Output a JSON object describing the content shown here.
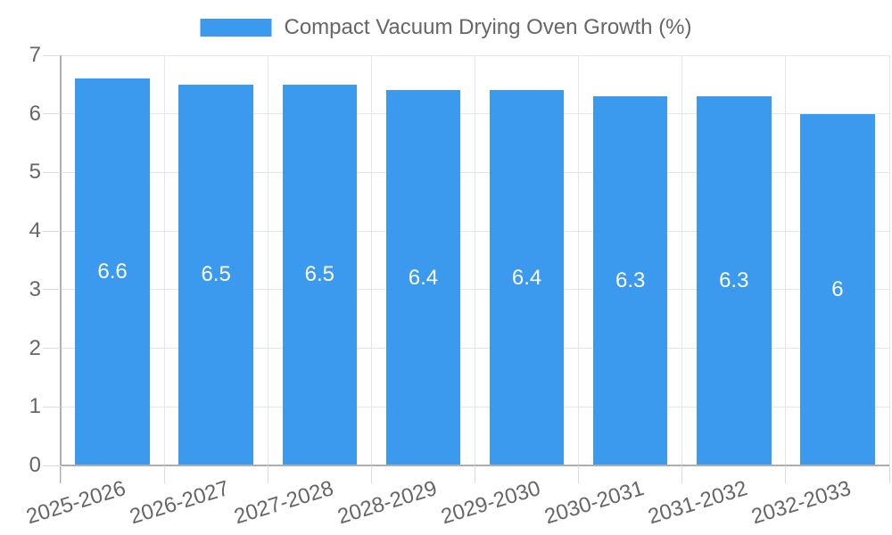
{
  "chart_data": {
    "type": "bar",
    "title": "Compact Vacuum Drying Oven Growth (%)",
    "categories": [
      "2025-2026",
      "2026-2027",
      "2027-2028",
      "2028-2029",
      "2029-2030",
      "2030-2031",
      "2031-2032",
      "2032-2033"
    ],
    "values": [
      6.6,
      6.5,
      6.5,
      6.4,
      6.4,
      6.3,
      6.3,
      6
    ],
    "value_labels": [
      "6.6",
      "6.5",
      "6.5",
      "6.4",
      "6.4",
      "6.3",
      "6.3",
      "6"
    ],
    "ylabel": "",
    "xlabel": "",
    "ylim": [
      0,
      7
    ],
    "ytick_labels": [
      "0",
      "1",
      "2",
      "3",
      "4",
      "5",
      "6",
      "7"
    ],
    "legend_position": "top",
    "grid": true,
    "colors": {
      "bar": "#3b9aee",
      "grid": "#e6e6e6",
      "tick": "#dcdcdc",
      "axis": "#aeaeae",
      "text": "#666666",
      "value_label": "#ffffff",
      "background": "#ffffff"
    }
  }
}
